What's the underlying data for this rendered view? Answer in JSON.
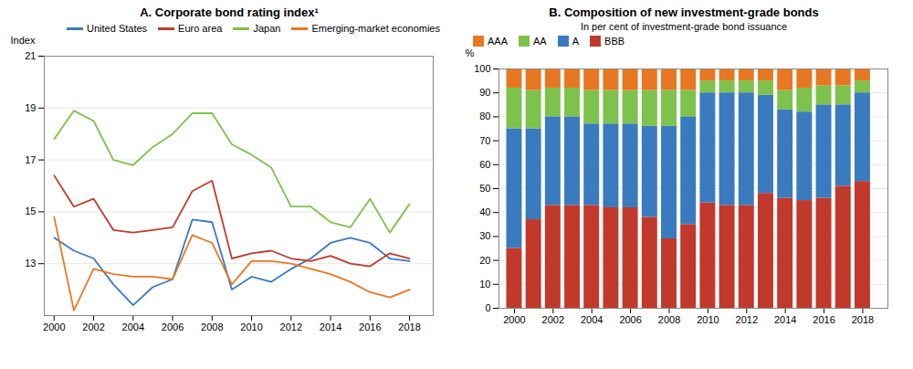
{
  "chart_data": [
    {
      "type": "line",
      "title": "A. Corporate bond rating index¹",
      "ylabel": "Index",
      "x": [
        2000,
        2001,
        2002,
        2003,
        2004,
        2005,
        2006,
        2007,
        2008,
        2009,
        2010,
        2011,
        2012,
        2013,
        2014,
        2015,
        2016,
        2017,
        2018
      ],
      "series": [
        {
          "name": "United States",
          "color": "#3a7abf",
          "values": [
            14.0,
            13.5,
            13.2,
            12.2,
            11.4,
            12.1,
            12.4,
            14.7,
            14.6,
            12.0,
            12.5,
            12.3,
            12.8,
            13.2,
            13.8,
            14.0,
            13.8,
            13.2,
            13.1
          ]
        },
        {
          "name": "Euro area",
          "color": "#c0392b",
          "values": [
            16.4,
            15.2,
            15.5,
            14.3,
            14.2,
            14.3,
            14.4,
            15.8,
            16.2,
            13.2,
            13.4,
            13.5,
            13.2,
            13.1,
            13.3,
            13.0,
            12.9,
            13.4,
            13.2
          ]
        },
        {
          "name": "Japan",
          "color": "#7dc24c",
          "values": [
            17.8,
            18.9,
            18.5,
            17.0,
            16.8,
            17.5,
            18.0,
            18.8,
            18.8,
            17.6,
            17.2,
            16.7,
            15.2,
            15.2,
            14.6,
            14.4,
            15.5,
            14.2,
            15.3
          ]
        },
        {
          "name": "Emerging-market economies",
          "color": "#e87722",
          "values": [
            14.8,
            11.2,
            12.8,
            12.6,
            12.5,
            12.5,
            12.4,
            14.1,
            13.8,
            12.2,
            13.1,
            13.1,
            13.0,
            12.8,
            12.6,
            12.3,
            11.9,
            11.7,
            12.0
          ]
        }
      ],
      "xlim": [
        1999.5,
        2019.2
      ],
      "xticks": [
        2000,
        2002,
        2004,
        2006,
        2008,
        2010,
        2012,
        2014,
        2016,
        2018
      ],
      "ylim": [
        11,
        21
      ],
      "yticks": [
        13,
        15,
        17,
        19,
        21
      ],
      "grid": true,
      "legend": "upper right"
    },
    {
      "type": "bar",
      "stacked": true,
      "title": "B. Composition of new investment-grade bonds",
      "subtitle": "In per cent of investment-grade bond issuance",
      "ylabel": "%",
      "x": [
        2000,
        2001,
        2002,
        2003,
        2004,
        2005,
        2006,
        2007,
        2008,
        2009,
        2010,
        2011,
        2012,
        2013,
        2014,
        2015,
        2016,
        2017,
        2018
      ],
      "series": [
        {
          "name": "BBB",
          "color": "#c0392b",
          "values": [
            25,
            37,
            43,
            43,
            43,
            42,
            42,
            38,
            29,
            35,
            44,
            43,
            43,
            48,
            46,
            45,
            46,
            51,
            53
          ]
        },
        {
          "name": "A",
          "color": "#3a7abf",
          "values": [
            50,
            38,
            37,
            37,
            34,
            35,
            35,
            38,
            47,
            45,
            46,
            47,
            47,
            41,
            37,
            37,
            39,
            34,
            37
          ]
        },
        {
          "name": "AA",
          "color": "#7dc24c",
          "values": [
            17,
            16,
            12,
            12,
            14,
            14,
            14,
            15,
            15,
            11,
            5,
            5,
            5,
            6,
            8,
            10,
            8,
            8,
            5
          ]
        },
        {
          "name": "AAA",
          "color": "#e87722",
          "values": [
            8,
            9,
            8,
            8,
            9,
            9,
            9,
            9,
            9,
            9,
            5,
            5,
            5,
            5,
            9,
            8,
            7,
            7,
            5
          ]
        }
      ],
      "xlim": [
        1999.2,
        2019.3
      ],
      "xticks": [
        2000,
        2002,
        2004,
        2006,
        2008,
        2010,
        2012,
        2014,
        2016,
        2018
      ],
      "ylim": [
        0,
        100
      ],
      "yticks": [
        0,
        10,
        20,
        30,
        40,
        50,
        60,
        70,
        80,
        90,
        100
      ],
      "grid": true,
      "legend": "upper left"
    }
  ]
}
